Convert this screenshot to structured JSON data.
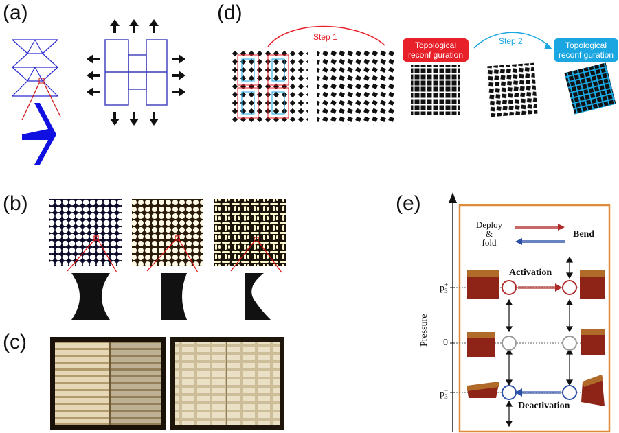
{
  "panels": {
    "a": "(a)",
    "b": "(b)",
    "c": "(c)",
    "d": "(d)",
    "e": "(e)"
  },
  "panel_d": {
    "step1": "Step 1",
    "step2": "Step 2",
    "badge_red": "Topological reconf guration",
    "badge_blue": "Topological reconf guration",
    "colors": {
      "red": "#e8202a",
      "blue": "#1aa6e0"
    }
  },
  "panel_e": {
    "deploy_fold": "Deploy & fold",
    "deploy": "Deploy",
    "amp": "&",
    "fold": "fold",
    "bend": "Bend",
    "activation": "Activation",
    "deactivation": "Deactivation",
    "pressure": "Pressure",
    "p_plus": "p",
    "p_plus_sup": "+",
    "p_sub": "3",
    "zero": "0",
    "p_minus": "p",
    "p_minus_sup": "−",
    "colors": {
      "frame": "#e08a3a",
      "red": "#b02a2a",
      "blue": "#2b4ea8"
    }
  }
}
